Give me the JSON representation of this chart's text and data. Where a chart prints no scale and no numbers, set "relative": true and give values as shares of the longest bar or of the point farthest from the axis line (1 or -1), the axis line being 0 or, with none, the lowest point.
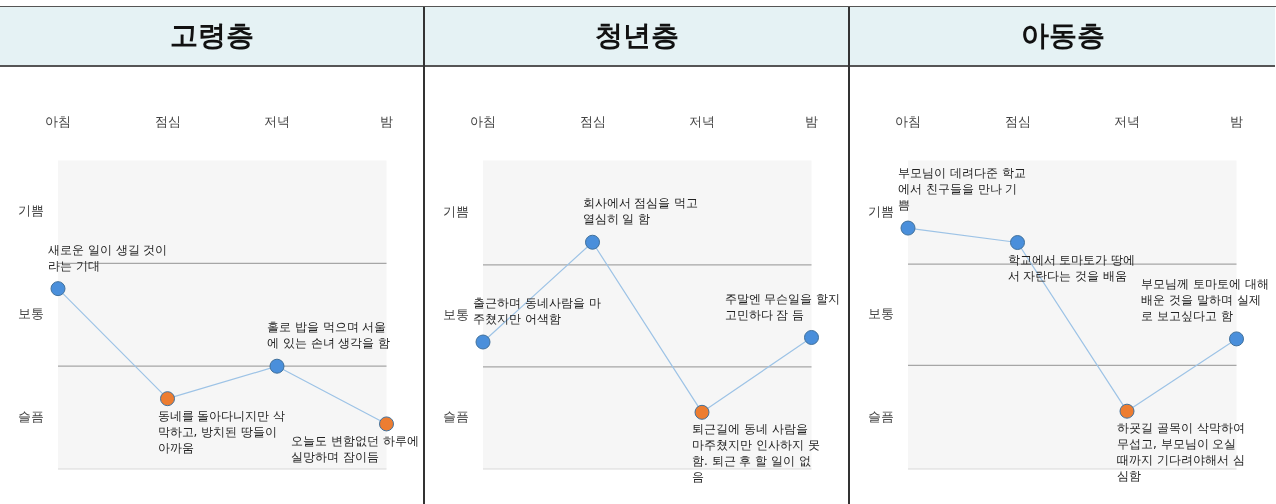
{
  "chart_data": [
    {
      "type": "line",
      "title": "고령층",
      "categories": [
        "아침",
        "점심",
        "저녁",
        "밤"
      ],
      "relative": true,
      "grid": false,
      "legend": false,
      "marker": "circle",
      "line_style": "solid",
      "series": [
        {
          "color": "#9dc3e6",
          "colors": [
            "#4a8fdb",
            "#ed7d31",
            "#4a8fdb",
            "#ed7d31"
          ],
          "values": [
            1,
            0.39,
            0.57,
            0.25
          ]
        }
      ],
      "bands": [
        {
          "axis": "y",
          "from": 0,
          "to": 0.57,
          "label": "슬픔",
          "color": "#f6f6f6"
        },
        {
          "axis": "y",
          "from": 0.57,
          "to": 1.14,
          "label": "보통",
          "color": "#f6f6f6"
        },
        {
          "axis": "y",
          "from": 1.14,
          "to": 1.71,
          "label": "기쁨",
          "color": "#f6f6f6"
        }
      ],
      "ref_lines": [
        {
          "axis": "y",
          "value": 0.57,
          "color": "#a6a6a6"
        },
        {
          "axis": "y",
          "value": 1.14,
          "color": "#a6a6a6"
        }
      ],
      "annotations": [
        {
          "text": "새로운 일이 생길 것이라는 기대",
          "x": "아침",
          "y": 1
        },
        {
          "text": "동네를 돌아다니지만 삭막하고, 방치된 땅들이 아까움",
          "x": "점심",
          "y": 0.39
        },
        {
          "text": "홀로 밥을 먹으며 서울에 있는 손녀 생각을 함",
          "x": "저녁",
          "y": 0.57
        },
        {
          "text": "오늘도 변함없던 하루에 실망하며 잠이듬",
          "x": "밤",
          "y": 0.25
        }
      ]
    },
    {
      "type": "line",
      "title": "청년층",
      "categories": [
        "아침",
        "점심",
        "저녁",
        "밤"
      ],
      "relative": true,
      "grid": false,
      "legend": false,
      "marker": "circle",
      "line_style": "solid",
      "series": [
        {
          "color": "#9dc3e6",
          "colors": [
            "#4a8fdb",
            "#4a8fdb",
            "#ed7d31",
            "#4a8fdb"
          ],
          "values": [
            0.56,
            1,
            0.25,
            0.58
          ]
        }
      ],
      "bands": [
        {
          "axis": "y",
          "from": 0,
          "to": 0.45,
          "label": "슬픔",
          "color": "#f6f6f6"
        },
        {
          "axis": "y",
          "from": 0.45,
          "to": 0.9,
          "label": "보통",
          "color": "#f6f6f6"
        },
        {
          "axis": "y",
          "from": 0.9,
          "to": 1.36,
          "label": "기쁨",
          "color": "#f6f6f6"
        }
      ],
      "ref_lines": [
        {
          "axis": "y",
          "value": 0.45,
          "color": "#a6a6a6"
        },
        {
          "axis": "y",
          "value": 0.9,
          "color": "#a6a6a6"
        }
      ],
      "annotations": [
        {
          "text": "출근하며 동네사람을 마주쳤지만 어색함",
          "x": "아침",
          "y": 0.56
        },
        {
          "text": "회사에서 점심을 먹고 열심히 일 함",
          "x": "점심",
          "y": 1
        },
        {
          "text": "퇴근길에 동네 사람을 마주쳤지만 인사하지 못함. 퇴근 후 할 일이 없음",
          "x": "저녁",
          "y": 0.25
        },
        {
          "text": "주말엔 무슨일을 할지 고민하다 잠 듬",
          "x": "밤",
          "y": 0.58
        }
      ]
    },
    {
      "type": "line",
      "title": "아동층",
      "categories": [
        "아침",
        "점심",
        "저녁",
        "밤"
      ],
      "relative": true,
      "grid": false,
      "legend": false,
      "marker": "circle",
      "line_style": "solid",
      "series": [
        {
          "color": "#9dc3e6",
          "colors": [
            "#4a8fdb",
            "#4a8fdb",
            "#ed7d31",
            "#4a8fdb"
          ],
          "values": [
            1,
            0.94,
            0.24,
            0.54
          ]
        }
      ],
      "bands": [
        {
          "axis": "y",
          "from": 0,
          "to": 0.43,
          "label": "슬픔",
          "color": "#f6f6f6"
        },
        {
          "axis": "y",
          "from": 0.43,
          "to": 0.85,
          "label": "보통",
          "color": "#f6f6f6"
        },
        {
          "axis": "y",
          "from": 0.85,
          "to": 1.28,
          "label": "기쁨",
          "color": "#f6f6f6"
        }
      ],
      "ref_lines": [
        {
          "axis": "y",
          "value": 0.43,
          "color": "#a6a6a6"
        },
        {
          "axis": "y",
          "value": 0.85,
          "color": "#a6a6a6"
        }
      ],
      "annotations": [
        {
          "text": "부모님이 데려다준 학교에서 친구들을 만나 기쁨",
          "x": "아침",
          "y": 1
        },
        {
          "text": "학교에서 토마토가 땅에서 자란다는 것을 배움",
          "x": "점심",
          "y": 0.94
        },
        {
          "text": "하굣길 골목이 삭막하여 무섭고, 부모님이 오실때까지 기다려야해서 심심함",
          "x": "저녁",
          "y": 0.24
        },
        {
          "text": "부모님께 토마토에 대해 배운 것을 말하며 실제로 보고싶다고 함",
          "x": "밤",
          "y": 0.54
        }
      ]
    }
  ]
}
